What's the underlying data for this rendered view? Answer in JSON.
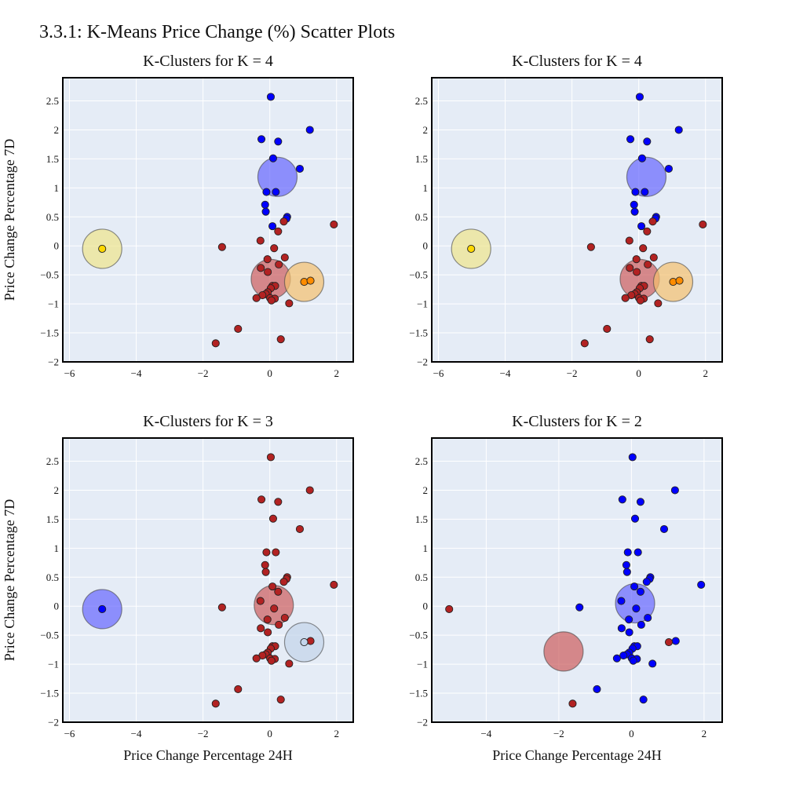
{
  "page": {
    "title": "3.3.1: K-Means Price Change (%) Scatter Plots"
  },
  "colors": {
    "plot_bg": "#e5ecf6",
    "grid": "#ffffff",
    "frame": "#000000",
    "red": "#b22222",
    "blue": "#0000ff",
    "gold": "#ffd700",
    "orange": "#ff8c00",
    "red_centroid": "#cd5c5c",
    "blue_centroid": "#6666ff",
    "yellow_centroid": "#f0e68c",
    "orange_centroid": "#f5c06e",
    "lightblue_centroid": "#c3d4ea"
  },
  "chart_data": [
    {
      "type": "scatter",
      "title": "K-Clusters for K = 4",
      "xlabel": "",
      "ylabel": "Price Change Percentage 7D",
      "xlim": [
        -6.2,
        2.5
      ],
      "ylim": [
        -2.0,
        2.9
      ],
      "xticks": [
        -6,
        -4,
        -2,
        0,
        2
      ],
      "yticks": [
        -2,
        -1.5,
        -1,
        -0.5,
        0,
        0.5,
        1,
        1.5,
        2,
        2.5
      ],
      "series": [
        {
          "color": "blue",
          "points": [
            [
              0.03,
              2.57
            ],
            [
              1.2,
              2.0
            ],
            [
              -0.25,
              1.84
            ],
            [
              0.25,
              1.8
            ],
            [
              0.1,
              1.51
            ],
            [
              0.9,
              1.33
            ],
            [
              -0.1,
              0.93
            ],
            [
              0.18,
              0.93
            ],
            [
              -0.14,
              0.71
            ],
            [
              -0.12,
              0.59
            ],
            [
              0.52,
              0.5
            ],
            [
              0.5,
              0.47
            ],
            [
              0.08,
              0.34
            ]
          ]
        },
        {
          "color": "red",
          "points": [
            [
              1.92,
              0.37
            ],
            [
              0.42,
              0.42
            ],
            [
              0.25,
              0.25
            ],
            [
              -0.28,
              0.09
            ],
            [
              -1.43,
              -0.02
            ],
            [
              0.13,
              -0.04
            ],
            [
              0.45,
              -0.2
            ],
            [
              -0.07,
              -0.23
            ],
            [
              0.27,
              -0.32
            ],
            [
              -0.27,
              -0.38
            ],
            [
              -0.06,
              -0.45
            ],
            [
              0.08,
              -0.69
            ],
            [
              0.16,
              -0.69
            ],
            [
              0.03,
              -0.73
            ],
            [
              -0.06,
              -0.8
            ],
            [
              -0.12,
              -0.83
            ],
            [
              -0.22,
              -0.85
            ],
            [
              0.01,
              -0.9
            ],
            [
              -0.4,
              -0.9
            ],
            [
              0.15,
              -0.91
            ],
            [
              0.05,
              -0.94
            ],
            [
              0.58,
              -0.99
            ],
            [
              -0.95,
              -1.43
            ],
            [
              0.33,
              -1.61
            ],
            [
              -1.62,
              -1.68
            ]
          ]
        },
        {
          "color": "gold",
          "points": [
            [
              -5.02,
              -0.05
            ]
          ]
        },
        {
          "color": "orange",
          "points": [
            [
              1.03,
              -0.62
            ],
            [
              1.22,
              -0.6
            ]
          ]
        }
      ],
      "centroids": [
        {
          "color": "blue_centroid",
          "x": 0.23,
          "y": 1.19
        },
        {
          "color": "red_centroid",
          "x": 0.03,
          "y": -0.57
        },
        {
          "color": "yellow_centroid",
          "x": -5.02,
          "y": -0.05
        },
        {
          "color": "orange_centroid",
          "x": 1.03,
          "y": -0.62
        }
      ]
    },
    {
      "type": "scatter",
      "title": "K-Clusters for K = 4",
      "xlabel": "",
      "ylabel": "",
      "xlim": [
        -6.2,
        2.5
      ],
      "ylim": [
        -2.0,
        2.9
      ],
      "xticks": [
        -6,
        -4,
        -2,
        0,
        2
      ],
      "yticks": [
        -2,
        -1.5,
        -1,
        -0.5,
        0,
        0.5,
        1,
        1.5,
        2,
        2.5
      ],
      "series": [
        {
          "color": "blue",
          "points": [
            [
              0.03,
              2.57
            ],
            [
              1.2,
              2.0
            ],
            [
              -0.25,
              1.84
            ],
            [
              0.25,
              1.8
            ],
            [
              0.1,
              1.51
            ],
            [
              0.9,
              1.33
            ],
            [
              -0.1,
              0.93
            ],
            [
              0.18,
              0.93
            ],
            [
              -0.14,
              0.71
            ],
            [
              -0.12,
              0.59
            ],
            [
              0.52,
              0.5
            ],
            [
              0.5,
              0.47
            ],
            [
              0.08,
              0.34
            ]
          ]
        },
        {
          "color": "red",
          "points": [
            [
              1.92,
              0.37
            ],
            [
              0.42,
              0.42
            ],
            [
              0.25,
              0.25
            ],
            [
              -0.28,
              0.09
            ],
            [
              -1.43,
              -0.02
            ],
            [
              0.13,
              -0.04
            ],
            [
              0.45,
              -0.2
            ],
            [
              -0.07,
              -0.23
            ],
            [
              0.27,
              -0.32
            ],
            [
              -0.27,
              -0.38
            ],
            [
              -0.06,
              -0.45
            ],
            [
              0.08,
              -0.69
            ],
            [
              0.16,
              -0.69
            ],
            [
              0.03,
              -0.73
            ],
            [
              -0.06,
              -0.8
            ],
            [
              -0.12,
              -0.83
            ],
            [
              -0.22,
              -0.85
            ],
            [
              0.01,
              -0.9
            ],
            [
              -0.4,
              -0.9
            ],
            [
              0.15,
              -0.91
            ],
            [
              0.05,
              -0.94
            ],
            [
              0.58,
              -0.99
            ],
            [
              -0.95,
              -1.43
            ],
            [
              0.33,
              -1.61
            ],
            [
              -1.62,
              -1.68
            ]
          ]
        },
        {
          "color": "gold",
          "points": [
            [
              -5.02,
              -0.05
            ]
          ]
        },
        {
          "color": "orange",
          "points": [
            [
              1.03,
              -0.62
            ],
            [
              1.22,
              -0.6
            ]
          ]
        }
      ],
      "centroids": [
        {
          "color": "blue_centroid",
          "x": 0.23,
          "y": 1.19
        },
        {
          "color": "red_centroid",
          "x": 0.03,
          "y": -0.57
        },
        {
          "color": "yellow_centroid",
          "x": -5.02,
          "y": -0.05
        },
        {
          "color": "orange_centroid",
          "x": 1.03,
          "y": -0.62
        }
      ]
    },
    {
      "type": "scatter",
      "title": "K-Clusters for K = 3",
      "xlabel": "Price Change Percentage 24H",
      "ylabel": "Price Change Percentage 7D",
      "xlim": [
        -6.2,
        2.5
      ],
      "ylim": [
        -2.0,
        2.9
      ],
      "xticks": [
        -6,
        -4,
        -2,
        0,
        2
      ],
      "yticks": [
        -2,
        -1.5,
        -1,
        -0.5,
        0,
        0.5,
        1,
        1.5,
        2,
        2.5
      ],
      "series": [
        {
          "color": "red",
          "points": [
            [
              0.03,
              2.57
            ],
            [
              1.2,
              2.0
            ],
            [
              -0.25,
              1.84
            ],
            [
              0.25,
              1.8
            ],
            [
              0.1,
              1.51
            ],
            [
              0.9,
              1.33
            ],
            [
              -0.1,
              0.93
            ],
            [
              0.18,
              0.93
            ],
            [
              -0.14,
              0.71
            ],
            [
              -0.12,
              0.59
            ],
            [
              0.52,
              0.5
            ],
            [
              0.5,
              0.47
            ],
            [
              0.08,
              0.34
            ],
            [
              1.92,
              0.37
            ],
            [
              0.42,
              0.42
            ],
            [
              0.25,
              0.25
            ],
            [
              -0.28,
              0.09
            ],
            [
              -1.43,
              -0.02
            ],
            [
              0.13,
              -0.04
            ],
            [
              0.45,
              -0.2
            ],
            [
              -0.07,
              -0.23
            ],
            [
              0.27,
              -0.32
            ],
            [
              -0.27,
              -0.38
            ],
            [
              -0.06,
              -0.45
            ],
            [
              0.08,
              -0.69
            ],
            [
              0.16,
              -0.69
            ],
            [
              0.03,
              -0.73
            ],
            [
              -0.06,
              -0.8
            ],
            [
              -0.12,
              -0.83
            ],
            [
              -0.22,
              -0.85
            ],
            [
              0.01,
              -0.9
            ],
            [
              -0.4,
              -0.9
            ],
            [
              0.15,
              -0.91
            ],
            [
              0.05,
              -0.94
            ],
            [
              0.58,
              -0.99
            ],
            [
              -0.95,
              -1.43
            ],
            [
              0.33,
              -1.61
            ],
            [
              -1.62,
              -1.68
            ],
            [
              1.22,
              -0.6
            ]
          ]
        },
        {
          "color": "blue",
          "points": [
            [
              -5.02,
              -0.05
            ]
          ]
        },
        {
          "color": "lightblue",
          "points": [
            [
              1.03,
              -0.62
            ]
          ]
        }
      ],
      "centroids": [
        {
          "color": "red_centroid",
          "x": 0.12,
          "y": 0.02
        },
        {
          "color": "blue_centroid",
          "x": -5.02,
          "y": -0.05
        },
        {
          "color": "lightblue_centroid",
          "x": 1.03,
          "y": -0.62
        }
      ]
    },
    {
      "type": "scatter",
      "title": "K-Clusters for K = 2",
      "xlabel": "Price Change Percentage 24H",
      "ylabel": "",
      "xlim": [
        -5.5,
        2.5
      ],
      "ylim": [
        -2.0,
        2.9
      ],
      "xticks": [
        -4,
        -2,
        0,
        2
      ],
      "yticks": [
        -2,
        -1.5,
        -1,
        -0.5,
        0,
        0.5,
        1,
        1.5,
        2,
        2.5
      ],
      "series": [
        {
          "color": "blue",
          "points": [
            [
              0.03,
              2.57
            ],
            [
              1.2,
              2.0
            ],
            [
              -0.25,
              1.84
            ],
            [
              0.25,
              1.8
            ],
            [
              0.1,
              1.51
            ],
            [
              0.9,
              1.33
            ],
            [
              -0.1,
              0.93
            ],
            [
              0.18,
              0.93
            ],
            [
              -0.14,
              0.71
            ],
            [
              -0.12,
              0.59
            ],
            [
              0.52,
              0.5
            ],
            [
              0.5,
              0.47
            ],
            [
              0.08,
              0.34
            ],
            [
              1.92,
              0.37
            ],
            [
              0.42,
              0.42
            ],
            [
              0.25,
              0.25
            ],
            [
              -0.28,
              0.09
            ],
            [
              -1.43,
              -0.02
            ],
            [
              0.13,
              -0.04
            ],
            [
              0.45,
              -0.2
            ],
            [
              -0.07,
              -0.23
            ],
            [
              0.27,
              -0.32
            ],
            [
              -0.27,
              -0.38
            ],
            [
              -0.06,
              -0.45
            ],
            [
              0.08,
              -0.69
            ],
            [
              0.16,
              -0.69
            ],
            [
              0.03,
              -0.73
            ],
            [
              -0.06,
              -0.8
            ],
            [
              -0.12,
              -0.83
            ],
            [
              -0.22,
              -0.85
            ],
            [
              0.01,
              -0.9
            ],
            [
              -0.4,
              -0.9
            ],
            [
              0.15,
              -0.91
            ],
            [
              0.05,
              -0.94
            ],
            [
              0.58,
              -0.99
            ],
            [
              -0.95,
              -1.43
            ],
            [
              0.33,
              -1.61
            ],
            [
              1.22,
              -0.6
            ]
          ]
        },
        {
          "color": "red",
          "points": [
            [
              -5.02,
              -0.05
            ],
            [
              -1.62,
              -1.68
            ],
            [
              1.03,
              -0.62
            ]
          ]
        }
      ],
      "centroids": [
        {
          "color": "blue_centroid",
          "x": 0.1,
          "y": 0.05
        },
        {
          "color": "red_centroid",
          "x": -1.87,
          "y": -0.78
        }
      ]
    }
  ]
}
